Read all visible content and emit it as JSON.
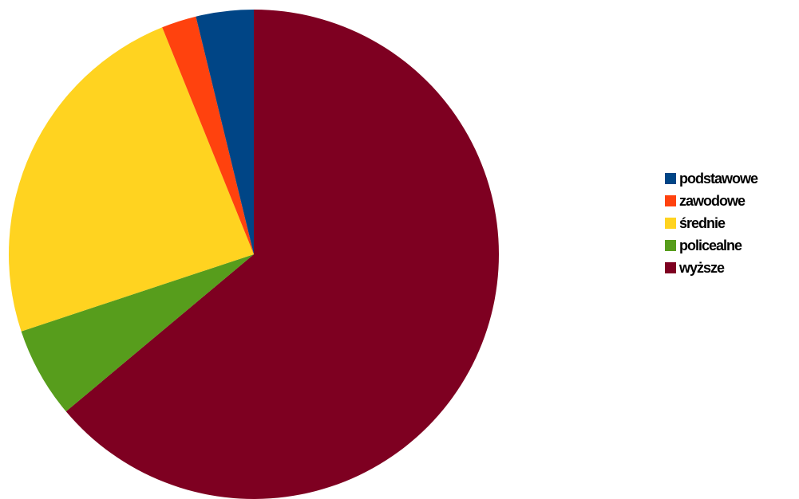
{
  "chart_data": {
    "type": "pie",
    "start_angle_deg": 0,
    "direction": "clockwise",
    "legend_position": "right",
    "slices": [
      {
        "label": "wyższe",
        "value": 63.9,
        "color": "#7E0021"
      },
      {
        "label": "policealne",
        "value": 6.0,
        "color": "#579D1C"
      },
      {
        "label": "średnie",
        "value": 24.0,
        "color": "#FFD320"
      },
      {
        "label": "zawodowe",
        "value": 2.3,
        "color": "#FF420E"
      },
      {
        "label": "podstawowe",
        "value": 3.8,
        "color": "#004586"
      }
    ],
    "legend": [
      {
        "label": "podstawowe",
        "color": "#004586"
      },
      {
        "label": "zawodowe",
        "color": "#FF420E"
      },
      {
        "label": "średnie",
        "color": "#FFD320"
      },
      {
        "label": "policealne",
        "color": "#579D1C"
      },
      {
        "label": "wyższe",
        "color": "#7E0021"
      }
    ]
  }
}
